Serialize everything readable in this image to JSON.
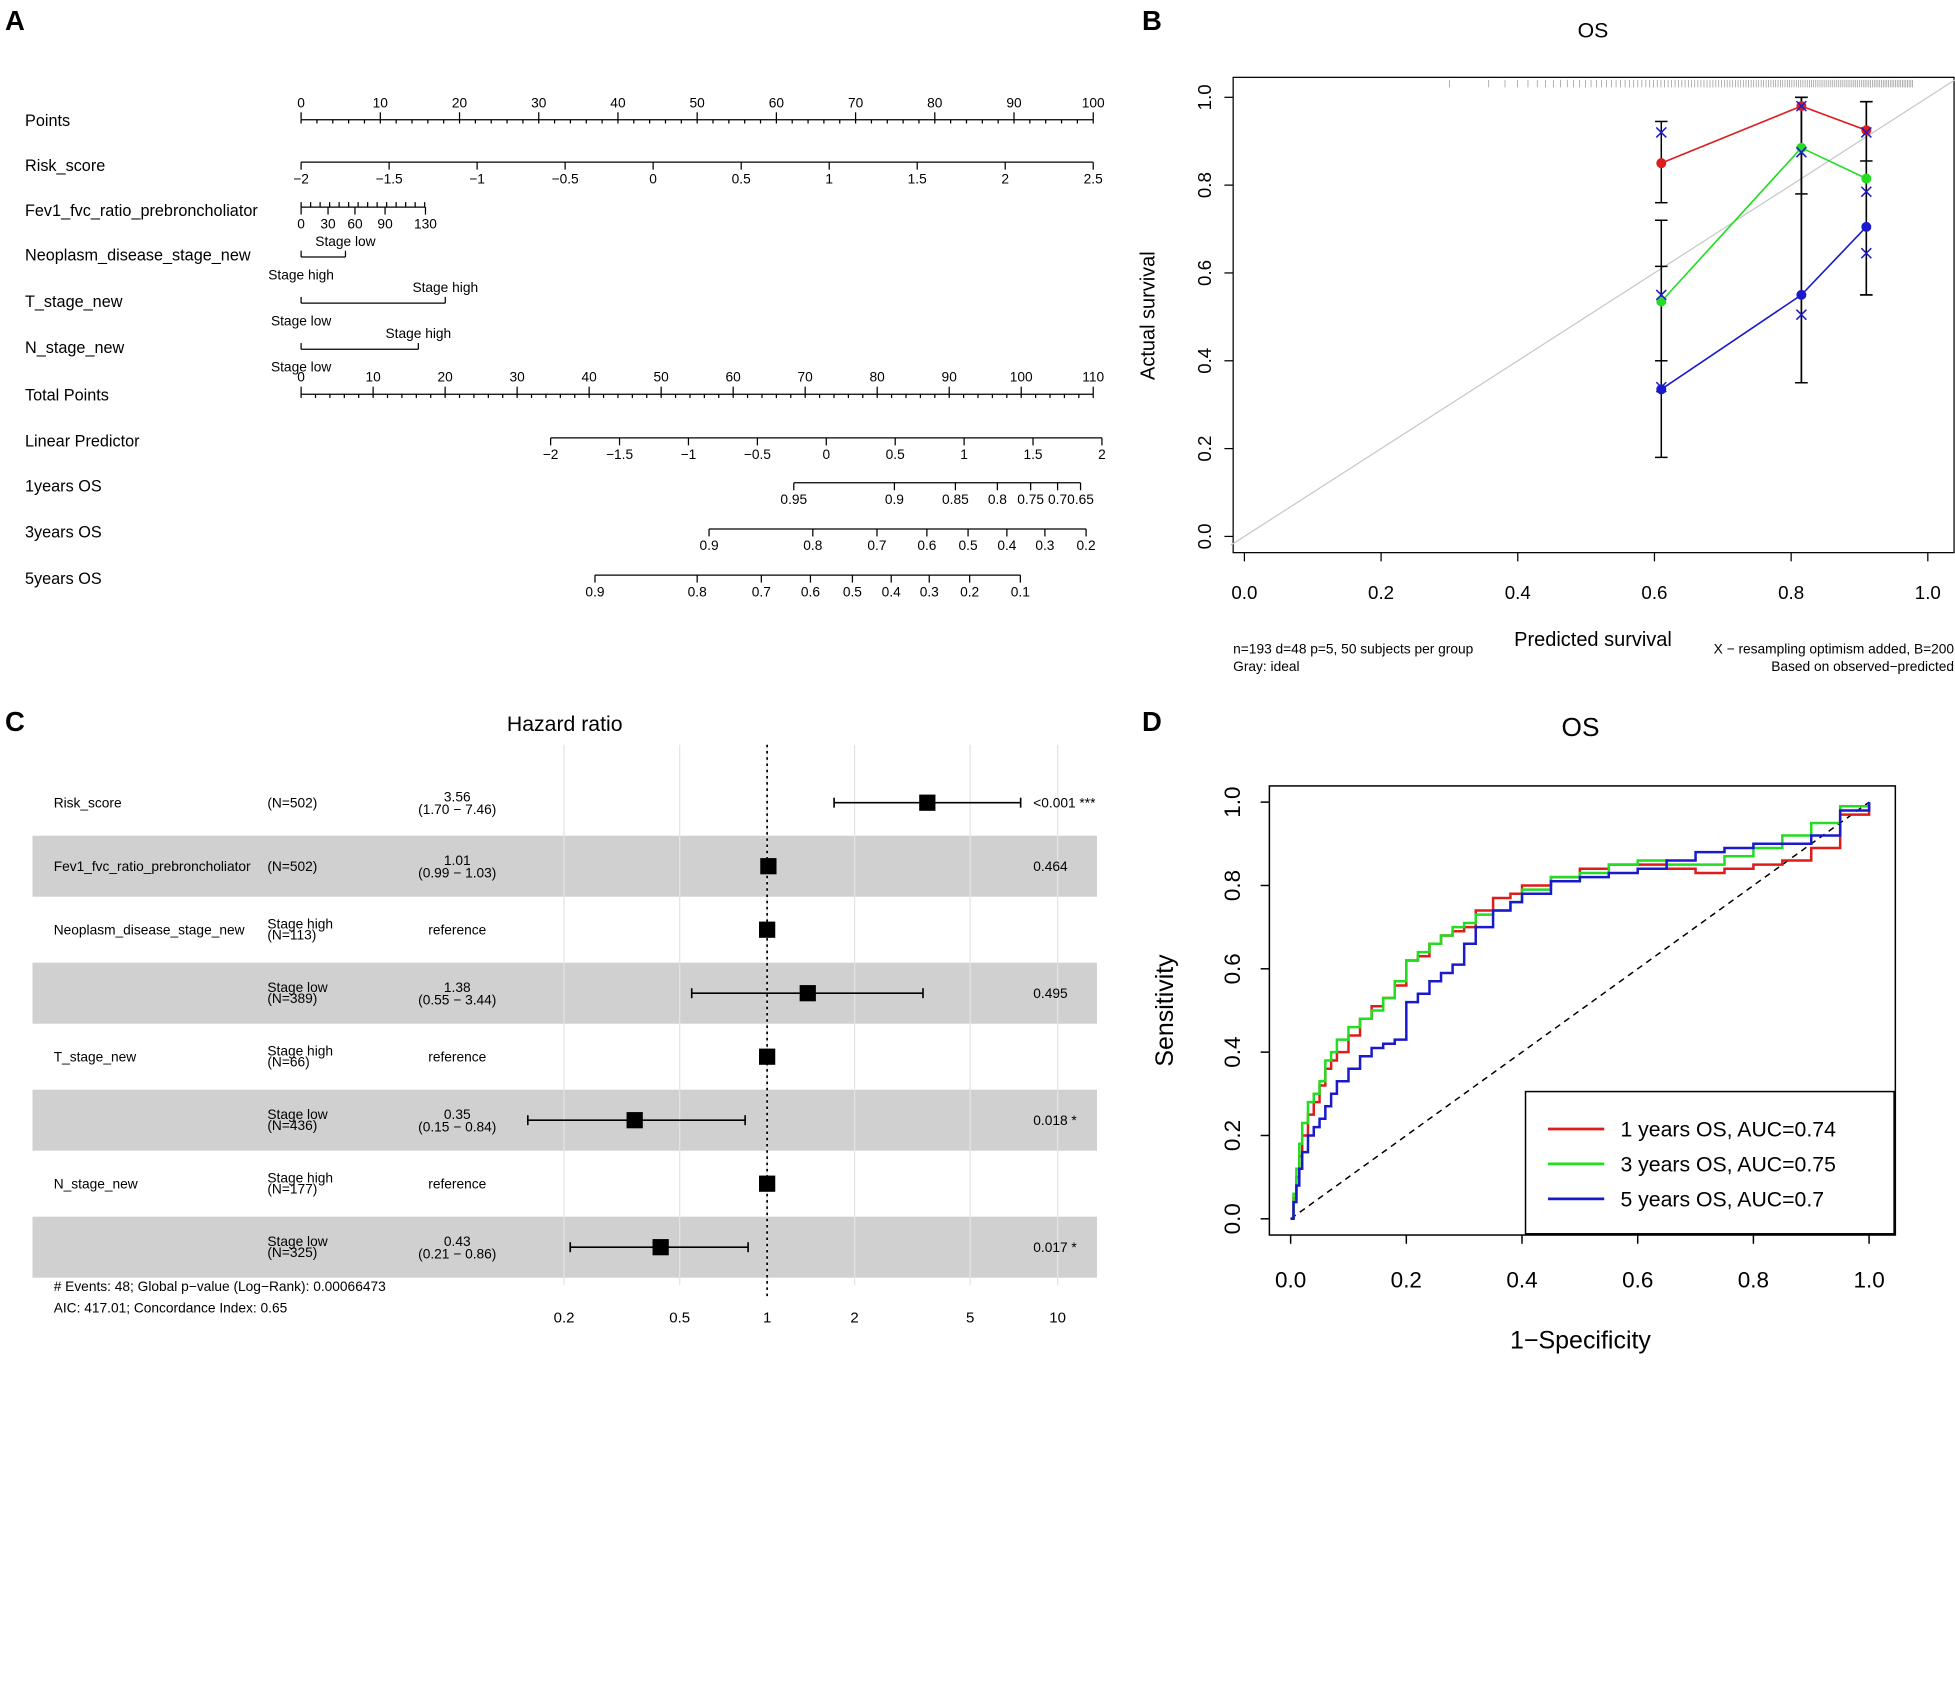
{
  "panels": {
    "a": "A",
    "b": "B",
    "c": "C",
    "d": "D"
  },
  "colors": {
    "red": "#dd1c1c",
    "green": "#22dd22",
    "blue": "#1a1acc",
    "stripe": "#d0d0d0",
    "ideal": "#c8c8c8"
  },
  "chart_data": [
    {
      "type": "table",
      "panel": "A",
      "title": "",
      "rows": [
        {
          "label": "Points",
          "ticks": [
            {
              "v": 0,
              "t": "0"
            },
            {
              "v": 10,
              "t": "10"
            },
            {
              "v": 20,
              "t": "20"
            },
            {
              "v": 30,
              "t": "30"
            },
            {
              "v": 40,
              "t": "40"
            },
            {
              "v": 50,
              "t": "50"
            },
            {
              "v": 60,
              "t": "60"
            },
            {
              "v": 70,
              "t": "70"
            },
            {
              "v": 80,
              "t": "80"
            },
            {
              "v": 90,
              "t": "90"
            },
            {
              "v": 100,
              "t": "100"
            }
          ]
        },
        {
          "label": "Risk_score",
          "ticks": [
            {
              "v": 0,
              "t": "−2"
            },
            {
              "v": 11.11,
              "t": "−1.5"
            },
            {
              "v": 22.22,
              "t": "−1"
            },
            {
              "v": 33.33,
              "t": "−0.5"
            },
            {
              "v": 44.44,
              "t": "0"
            },
            {
              "v": 55.56,
              "t": "0.5"
            },
            {
              "v": 66.67,
              "t": "1"
            },
            {
              "v": 77.78,
              "t": "1.5"
            },
            {
              "v": 88.89,
              "t": "2"
            },
            {
              "v": 100,
              "t": "2.5"
            }
          ]
        },
        {
          "label": "Fev1_fvc_ratio_prebroncholiator",
          "ticks": [
            {
              "v": 0,
              "t": "0"
            },
            {
              "v": 3.4,
              "t": "30"
            },
            {
              "v": 6.8,
              "t": "60"
            },
            {
              "v": 10.6,
              "t": "90"
            },
            {
              "v": 15.7,
              "t": "130"
            }
          ]
        },
        {
          "label": "Neoplasm_disease_stage_new",
          "level_a": "Stage low",
          "level_b": "Stage high",
          "span": [
            0,
            5.6
          ]
        },
        {
          "label": "T_stage_new",
          "level_a": "Stage high",
          "level_b": "Stage low",
          "span": [
            0,
            18.2
          ]
        },
        {
          "label": "N_stage_new",
          "level_a": "Stage high",
          "level_b": "Stage low",
          "span": [
            0,
            14.8
          ]
        },
        {
          "label": "Total Points",
          "ticks": [
            {
              "v": 0,
              "t": "0"
            },
            {
              "v": 10,
              "t": "10"
            },
            {
              "v": 20,
              "t": "20"
            },
            {
              "v": 30,
              "t": "30"
            },
            {
              "v": 40,
              "t": "40"
            },
            {
              "v": 50,
              "t": "50"
            },
            {
              "v": 60,
              "t": "60"
            },
            {
              "v": 70,
              "t": "70"
            },
            {
              "v": 80,
              "t": "80"
            },
            {
              "v": 90,
              "t": "90"
            },
            {
              "v": 100,
              "t": "100"
            },
            {
              "v": 110,
              "t": "110"
            }
          ]
        },
        {
          "label": "Linear Predictor",
          "ticks": [
            {
              "v": 31.5,
              "t": "−2"
            },
            {
              "v": 40.2,
              "t": "−1.5"
            },
            {
              "v": 48.9,
              "t": "−1"
            },
            {
              "v": 57.6,
              "t": "−0.5"
            },
            {
              "v": 66.3,
              "t": "0"
            },
            {
              "v": 75.0,
              "t": "0.5"
            },
            {
              "v": 83.7,
              "t": "1"
            },
            {
              "v": 92.4,
              "t": "1.5"
            },
            {
              "v": 101.1,
              "t": "2"
            }
          ]
        },
        {
          "label": "1years OS",
          "ticks": [
            {
              "v": 62.2,
              "t": "0.95"
            },
            {
              "v": 74.9,
              "t": "0.9"
            },
            {
              "v": 82.6,
              "t": "0.85"
            },
            {
              "v": 87.9,
              "t": "0.8"
            },
            {
              "v": 92.1,
              "t": "0.75"
            },
            {
              "v": 95.5,
              "t": "0.7"
            },
            {
              "v": 98.4,
              "t": "0.65"
            }
          ]
        },
        {
          "label": "3years OS",
          "ticks": [
            {
              "v": 51.5,
              "t": "0.9"
            },
            {
              "v": 64.6,
              "t": "0.8"
            },
            {
              "v": 72.7,
              "t": "0.7"
            },
            {
              "v": 79.0,
              "t": "0.6"
            },
            {
              "v": 84.2,
              "t": "0.5"
            },
            {
              "v": 89.1,
              "t": "0.4"
            },
            {
              "v": 93.9,
              "t": "0.3"
            },
            {
              "v": 99.1,
              "t": "0.2"
            }
          ]
        },
        {
          "label": "5years OS",
          "ticks": [
            {
              "v": 37.1,
              "t": "0.9"
            },
            {
              "v": 50.0,
              "t": "0.8"
            },
            {
              "v": 58.1,
              "t": "0.7"
            },
            {
              "v": 64.3,
              "t": "0.6"
            },
            {
              "v": 69.6,
              "t": "0.5"
            },
            {
              "v": 74.5,
              "t": "0.4"
            },
            {
              "v": 79.3,
              "t": "0.3"
            },
            {
              "v": 84.4,
              "t": "0.2"
            },
            {
              "v": 90.8,
              "t": "0.1"
            }
          ]
        }
      ]
    },
    {
      "type": "line",
      "panel": "B",
      "title": "OS",
      "xlabel": "Predicted survival",
      "ylabel": "Actual survival",
      "xlim": [
        0,
        1
      ],
      "ylim": [
        0,
        1
      ],
      "xticks": [
        "0.0",
        "0.2",
        "0.4",
        "0.6",
        "0.8",
        "1.0"
      ],
      "yticks": [
        "0.0",
        "0.2",
        "0.4",
        "0.6",
        "0.8",
        "1.0"
      ],
      "grid": false,
      "x": [
        0.61,
        0.815,
        0.91
      ],
      "series": [
        {
          "name": "red",
          "values": [
            0.85,
            0.98,
            0.925
          ],
          "lower": [
            0.76,
            0.78,
            0.855
          ],
          "upper": [
            0.945,
            1.0,
            0.99
          ],
          "corrected": [
            0.92,
            0.98,
            0.92
          ]
        },
        {
          "name": "green",
          "values": [
            0.535,
            0.885,
            0.815
          ],
          "lower": [
            0.4,
            0.35,
            0.55
          ],
          "upper": [
            0.72,
            1.0,
            0.99
          ],
          "corrected": [
            0.55,
            0.875,
            0.785
          ]
        },
        {
          "name": "blue",
          "values": [
            0.335,
            0.55,
            0.705
          ],
          "lower": [
            0.18,
            0.35,
            0.55
          ],
          "upper": [
            0.615,
            1.0,
            0.99
          ],
          "corrected": [
            0.34,
            0.505,
            0.645
          ]
        }
      ],
      "annotations": {
        "left1": "n=193 d=48 p=5, 50 subjects per group",
        "left2": "Gray: ideal",
        "right1": "X − resampling optimism added, B=200",
        "right2": "Based on observed−predicted"
      }
    },
    {
      "type": "scatter",
      "panel": "C",
      "title": "Hazard ratio",
      "scale": "log",
      "xlim": [
        0.14,
        14
      ],
      "xticks": [
        {
          "v": 0.2,
          "t": "0.2"
        },
        {
          "v": 0.5,
          "t": "0.5"
        },
        {
          "v": 1,
          "t": "1"
        },
        {
          "v": 2,
          "t": "2"
        },
        {
          "v": 5,
          "t": "5"
        },
        {
          "v": 10,
          "t": "10"
        }
      ],
      "rows": [
        {
          "var": "Risk_score",
          "level": "",
          "n": "(N=502)",
          "hr_text": "3.56",
          "ci_text": "(1.70 − 7.46)",
          "hr": 3.56,
          "lo": 1.7,
          "hi": 7.46,
          "p": "<0.001 ***"
        },
        {
          "var": "Fev1_fvc_ratio_prebroncholiator",
          "level": "",
          "n": "(N=502)",
          "hr_text": "1.01",
          "ci_text": "(0.99 − 1.03)",
          "hr": 1.01,
          "lo": 0.99,
          "hi": 1.03,
          "p": "0.464"
        },
        {
          "var": "Neoplasm_disease_stage_new",
          "level": "Stage high",
          "n": "(N=113)",
          "hr_text": "reference",
          "ci_text": "",
          "hr": 1,
          "lo": 1,
          "hi": 1,
          "p": ""
        },
        {
          "var": "",
          "level": "Stage low",
          "n": "(N=389)",
          "hr_text": "1.38",
          "ci_text": "(0.55 − 3.44)",
          "hr": 1.38,
          "lo": 0.55,
          "hi": 3.44,
          "p": "0.495"
        },
        {
          "var": "T_stage_new",
          "level": "Stage high",
          "n": "(N=66)",
          "hr_text": "reference",
          "ci_text": "",
          "hr": 1,
          "lo": 1,
          "hi": 1,
          "p": ""
        },
        {
          "var": "",
          "level": "Stage low",
          "n": "(N=436)",
          "hr_text": "0.35",
          "ci_text": "(0.15 − 0.84)",
          "hr": 0.35,
          "lo": 0.15,
          "hi": 0.84,
          "p": "0.018 *"
        },
        {
          "var": "N_stage_new",
          "level": "Stage high",
          "n": "(N=177)",
          "hr_text": "reference",
          "ci_text": "",
          "hr": 1,
          "lo": 1,
          "hi": 1,
          "p": ""
        },
        {
          "var": "",
          "level": "Stage low",
          "n": "(N=325)",
          "hr_text": "0.43",
          "ci_text": "(0.21 − 0.86)",
          "hr": 0.43,
          "lo": 0.21,
          "hi": 0.86,
          "p": "0.017 *"
        }
      ],
      "footer1": "# Events: 48; Global p−value (Log−Rank): 0.00066473",
      "footer2": "AIC: 417.01; Concordance Index: 0.65"
    },
    {
      "type": "line",
      "panel": "D",
      "title": "OS",
      "xlabel": "1−Specificity",
      "ylabel": "Sensitivity",
      "xlim": [
        0,
        1
      ],
      "ylim": [
        0,
        1
      ],
      "xticks": [
        "0.0",
        "0.2",
        "0.4",
        "0.6",
        "0.8",
        "1.0"
      ],
      "yticks": [
        "0.0",
        "0.2",
        "0.4",
        "0.6",
        "0.8",
        "1.0"
      ],
      "legend_position": "bottom-right",
      "series": [
        {
          "name": "1 years OS, AUC=0.74",
          "color": "red",
          "x": [
            0,
            0.005,
            0.01,
            0.015,
            0.02,
            0.03,
            0.04,
            0.05,
            0.06,
            0.07,
            0.08,
            0.1,
            0.12,
            0.14,
            0.16,
            0.18,
            0.2,
            0.22,
            0.24,
            0.26,
            0.28,
            0.3,
            0.32,
            0.35,
            0.38,
            0.4,
            0.45,
            0.5,
            0.55,
            0.6,
            0.65,
            0.7,
            0.75,
            0.8,
            0.85,
            0.9,
            0.95,
            1.0
          ],
          "y": [
            0,
            0.05,
            0.1,
            0.15,
            0.2,
            0.25,
            0.28,
            0.32,
            0.36,
            0.38,
            0.4,
            0.44,
            0.48,
            0.51,
            0.53,
            0.56,
            0.62,
            0.63,
            0.66,
            0.68,
            0.69,
            0.7,
            0.74,
            0.77,
            0.78,
            0.8,
            0.82,
            0.84,
            0.85,
            0.85,
            0.84,
            0.83,
            0.84,
            0.85,
            0.86,
            0.89,
            0.97,
            1.0
          ]
        },
        {
          "name": "3 years OS, AUC=0.75",
          "color": "green",
          "x": [
            0,
            0.005,
            0.01,
            0.015,
            0.02,
            0.03,
            0.04,
            0.05,
            0.06,
            0.07,
            0.08,
            0.1,
            0.12,
            0.14,
            0.16,
            0.18,
            0.2,
            0.22,
            0.24,
            0.26,
            0.28,
            0.3,
            0.32,
            0.35,
            0.38,
            0.4,
            0.45,
            0.5,
            0.55,
            0.6,
            0.65,
            0.7,
            0.75,
            0.8,
            0.85,
            0.9,
            0.95,
            1.0
          ],
          "y": [
            0,
            0.06,
            0.12,
            0.18,
            0.23,
            0.28,
            0.3,
            0.33,
            0.38,
            0.4,
            0.43,
            0.46,
            0.48,
            0.5,
            0.53,
            0.57,
            0.62,
            0.64,
            0.66,
            0.68,
            0.7,
            0.71,
            0.73,
            0.74,
            0.76,
            0.79,
            0.82,
            0.83,
            0.85,
            0.86,
            0.85,
            0.85,
            0.87,
            0.89,
            0.92,
            0.95,
            0.99,
            1.0
          ]
        },
        {
          "name": "5 years OS, AUC=0.7",
          "color": "blue",
          "x": [
            0,
            0.005,
            0.01,
            0.015,
            0.02,
            0.03,
            0.04,
            0.05,
            0.06,
            0.07,
            0.08,
            0.1,
            0.12,
            0.14,
            0.16,
            0.18,
            0.2,
            0.22,
            0.24,
            0.26,
            0.28,
            0.3,
            0.32,
            0.35,
            0.38,
            0.4,
            0.45,
            0.5,
            0.55,
            0.6,
            0.65,
            0.7,
            0.75,
            0.8,
            0.85,
            0.9,
            0.95,
            1.0
          ],
          "y": [
            0,
            0.04,
            0.08,
            0.12,
            0.16,
            0.2,
            0.22,
            0.24,
            0.27,
            0.3,
            0.33,
            0.36,
            0.39,
            0.41,
            0.42,
            0.43,
            0.52,
            0.54,
            0.57,
            0.59,
            0.61,
            0.66,
            0.7,
            0.74,
            0.76,
            0.78,
            0.81,
            0.82,
            0.83,
            0.84,
            0.86,
            0.88,
            0.89,
            0.9,
            0.9,
            0.92,
            0.98,
            1.0
          ]
        }
      ]
    }
  ]
}
